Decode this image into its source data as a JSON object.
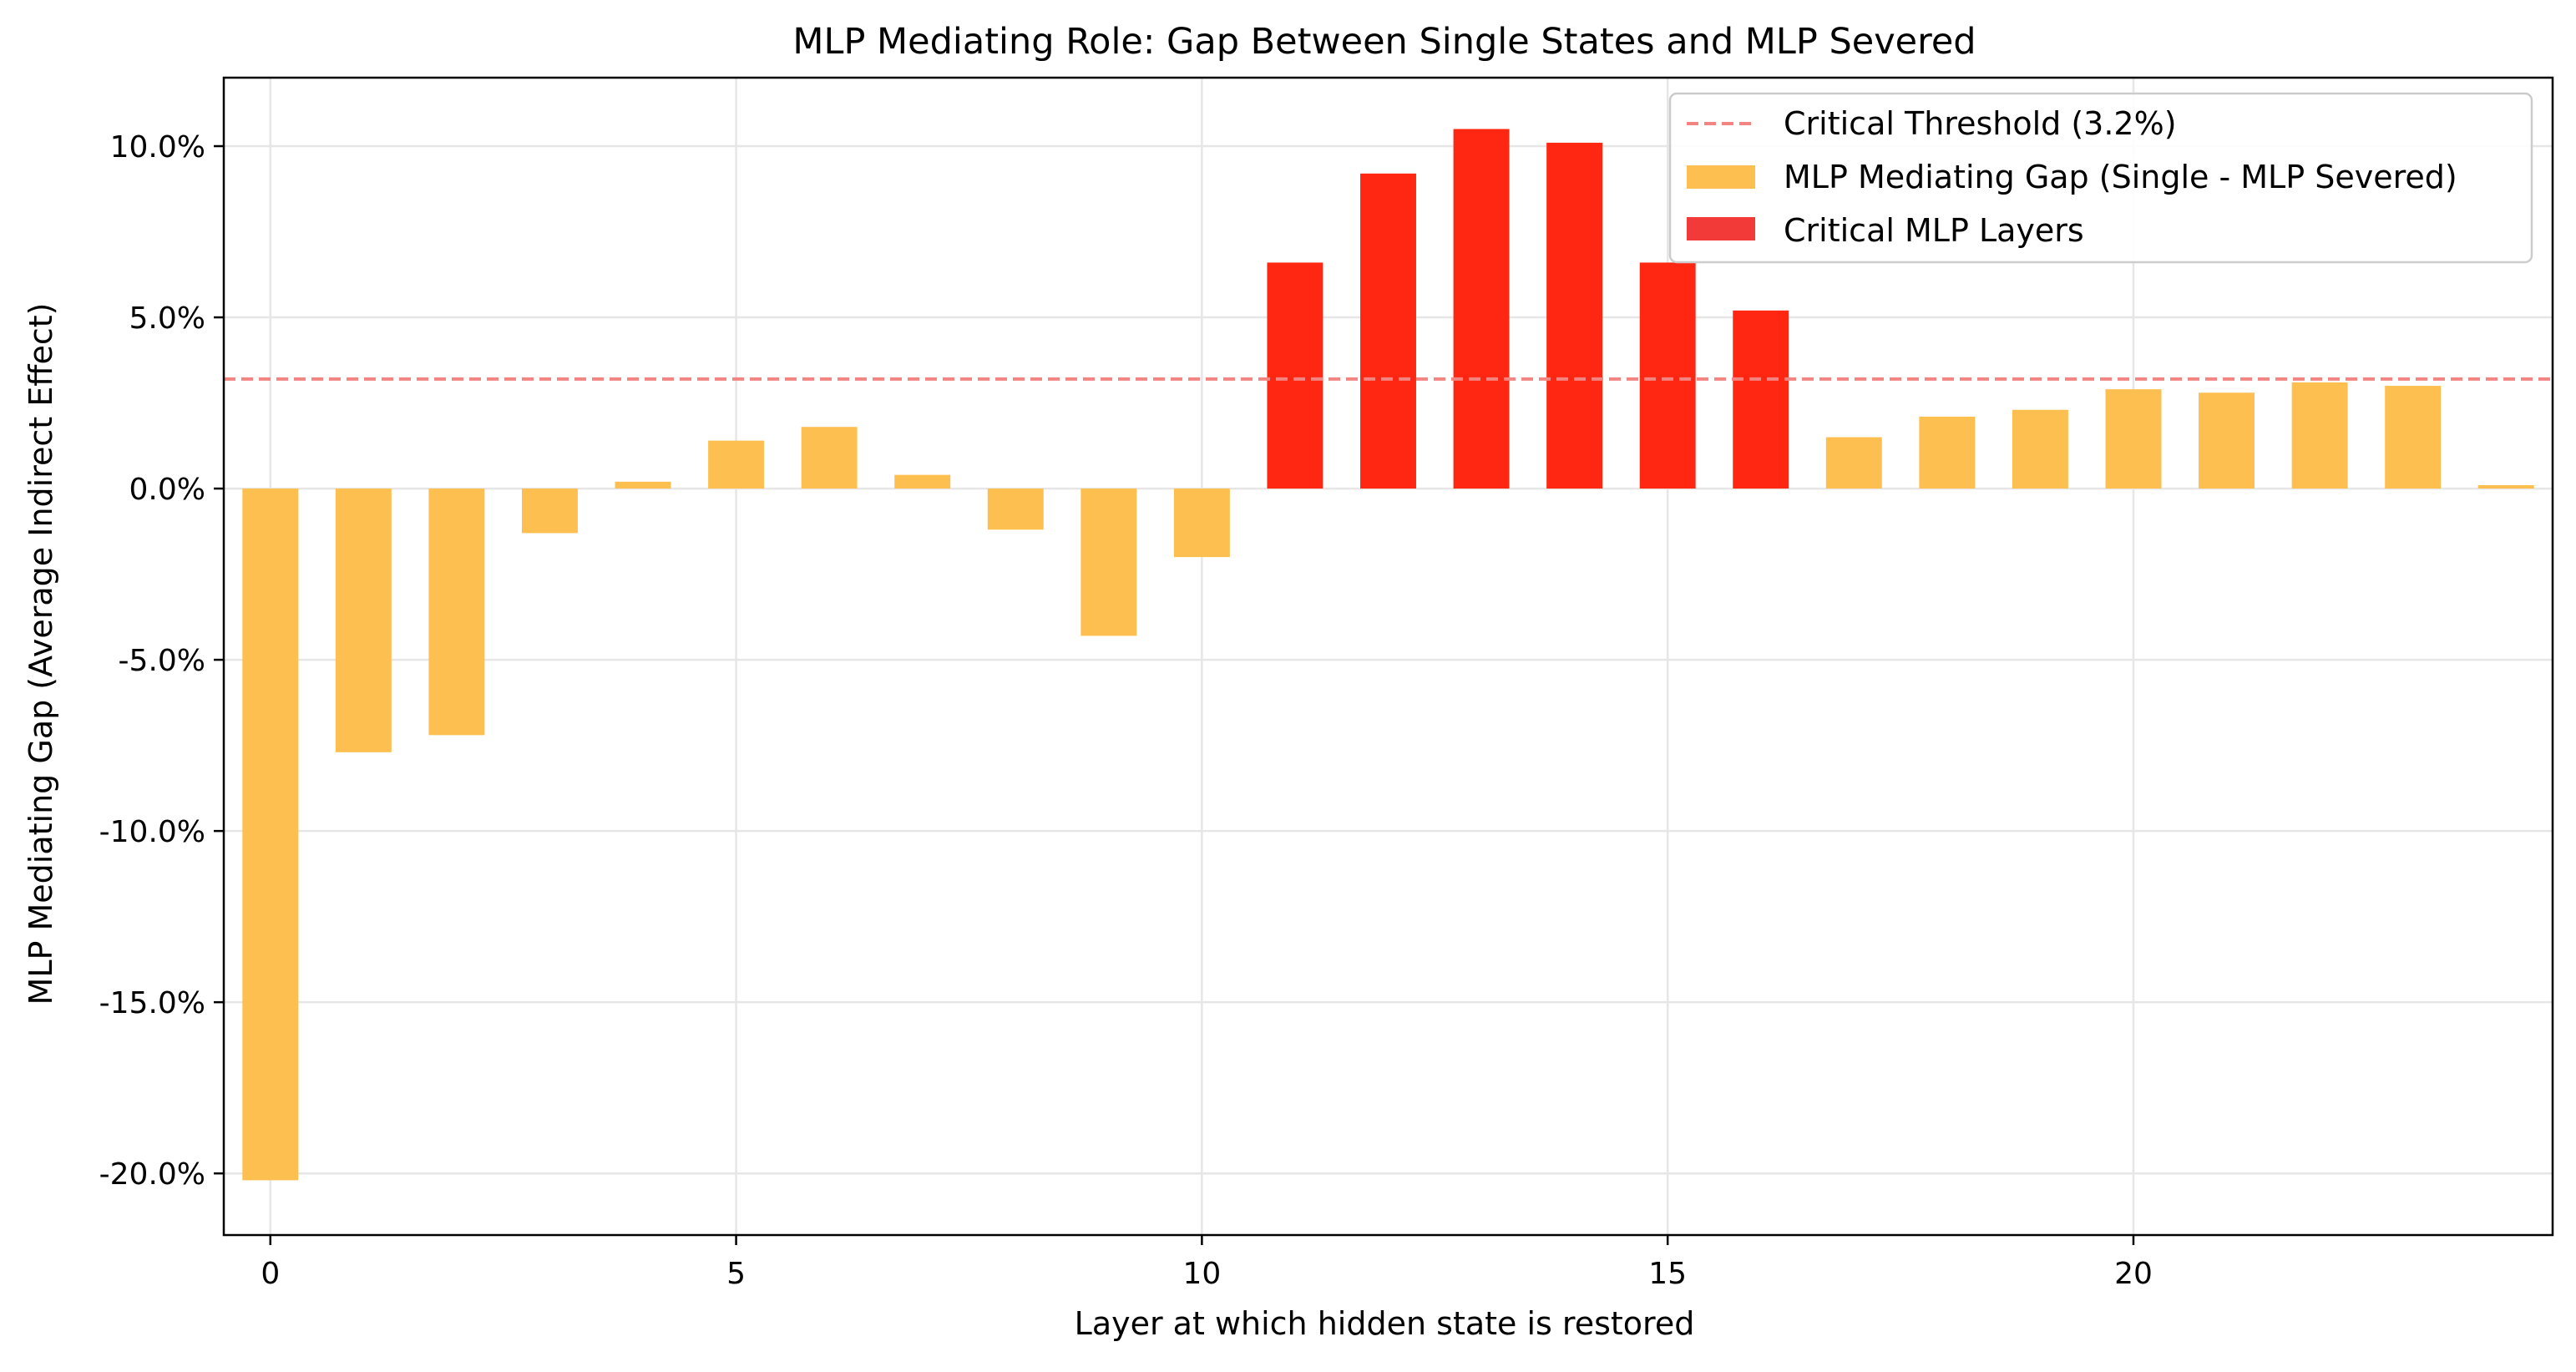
{
  "chart_data": {
    "type": "bar",
    "title": "MLP Mediating Role: Gap Between Single States and MLP Severed",
    "xlabel": "Layer at which hidden state is restored",
    "ylabel": "MLP Mediating Gap (Average Indirect Effect)",
    "x": [
      0,
      1,
      2,
      3,
      4,
      5,
      6,
      7,
      8,
      9,
      10,
      11,
      12,
      13,
      14,
      15,
      16,
      17,
      18,
      19,
      20,
      21,
      22,
      23,
      24
    ],
    "values": [
      -20.2,
      -7.7,
      -7.2,
      -1.3,
      0.2,
      1.4,
      1.8,
      0.4,
      -1.2,
      -4.3,
      -2.0,
      6.6,
      9.2,
      10.5,
      10.1,
      6.6,
      5.2,
      1.5,
      2.1,
      2.3,
      2.9,
      2.8,
      3.1,
      3.0,
      0.1
    ],
    "critical_layers": [
      11,
      12,
      13,
      14,
      15,
      16
    ],
    "threshold": 3.2,
    "xlim": [
      -0.5,
      24.5
    ],
    "ylim": [
      -21.8,
      12.0
    ],
    "x_ticks": [
      0,
      5,
      10,
      15,
      20
    ],
    "x_tick_labels": [
      "0",
      "5",
      "10",
      "15",
      "20"
    ],
    "y_ticks": [
      -20,
      -15,
      -10,
      -5,
      0,
      5,
      10
    ],
    "y_tick_labels": [
      "-20.0%",
      "-15.0%",
      "-10.0%",
      "-5.0%",
      "0.0%",
      "5.0%",
      "10.0%"
    ],
    "grid": true,
    "legend_position": "top-right",
    "legend": [
      "Critical Threshold (3.2%)",
      "MLP Mediating Gap (Single - MLP Severed)",
      "Critical MLP Layers"
    ],
    "colors": {
      "normal_bar": "#fdbf4f",
      "critical_bar": "#ff2712",
      "critical_legend": "#f23a38",
      "threshold_line": "#f28582",
      "grid": "#e6e6e6",
      "axis": "#000000"
    }
  }
}
